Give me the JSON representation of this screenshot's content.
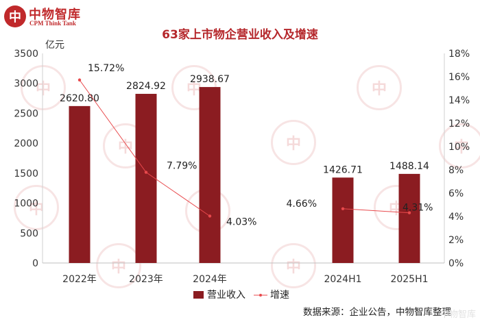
{
  "brand": {
    "seal_char": "中",
    "name": "中物智库",
    "subname": "CPM Think Tank"
  },
  "title": "63家上市物企营业收入及增速",
  "source": "数据来源：企业公告，中物智库整理",
  "watermark": "中物智库",
  "chart_data": {
    "type": "bar",
    "categories": [
      "2022年",
      "2023年",
      "2024年",
      "2024H1",
      "2025H1"
    ],
    "series": [
      {
        "name": "营业收入",
        "kind": "bar",
        "axis": "left",
        "color": "#8b1c21",
        "values": [
          2620.8,
          2824.92,
          2938.67,
          1426.71,
          1488.14
        ],
        "labels": [
          "2620.80",
          "2824.92",
          "2938.67",
          "1426.71",
          "1488.14"
        ]
      },
      {
        "name": "增速",
        "kind": "line",
        "axis": "right",
        "color": "#e8494c",
        "groups": [
          [
            0,
            1,
            2
          ],
          [
            3,
            4
          ]
        ],
        "values": [
          15.72,
          7.79,
          4.03,
          4.66,
          4.31
        ],
        "labels": [
          "15.72%",
          "7.79%",
          "4.03%",
          "4.66%",
          "4.31%"
        ]
      }
    ],
    "y_left": {
      "unit": "亿元",
      "min": 0,
      "max": 3500,
      "ticks": [
        "0",
        "500",
        "1000",
        "1500",
        "2000",
        "2500",
        "3000",
        "3500"
      ]
    },
    "y_right": {
      "min": 0,
      "max": 18,
      "ticks": [
        "0%",
        "2%",
        "4%",
        "6%",
        "8%",
        "10%",
        "12%",
        "14%",
        "16%",
        "18%"
      ]
    },
    "grid": false,
    "legend_position": "bottom-center"
  }
}
